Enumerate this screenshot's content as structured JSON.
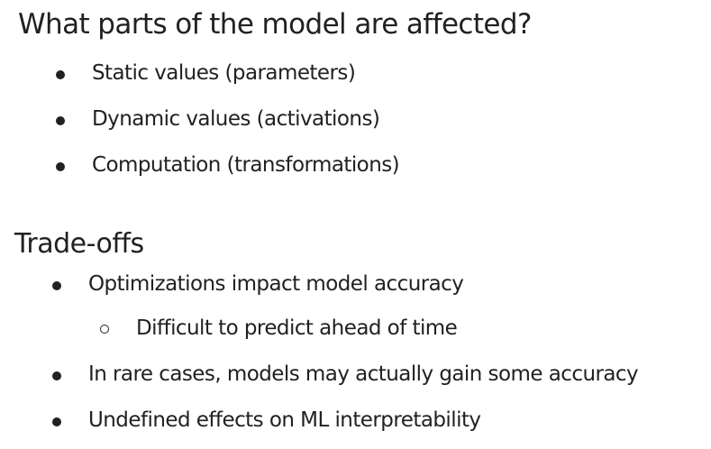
{
  "section1": {
    "heading": "What parts of the model are affected?",
    "bullets": [
      "Static values (parameters)",
      "Dynamic values (activations)",
      "Computation (transformations)"
    ]
  },
  "section2": {
    "heading": "Trade-offs",
    "bullets": [
      "Optimizations impact model accuracy",
      "Difficult to predict ahead of time",
      "In rare cases, models may actually gain some accuracy",
      "Undefined effects on ML interpretability"
    ]
  }
}
